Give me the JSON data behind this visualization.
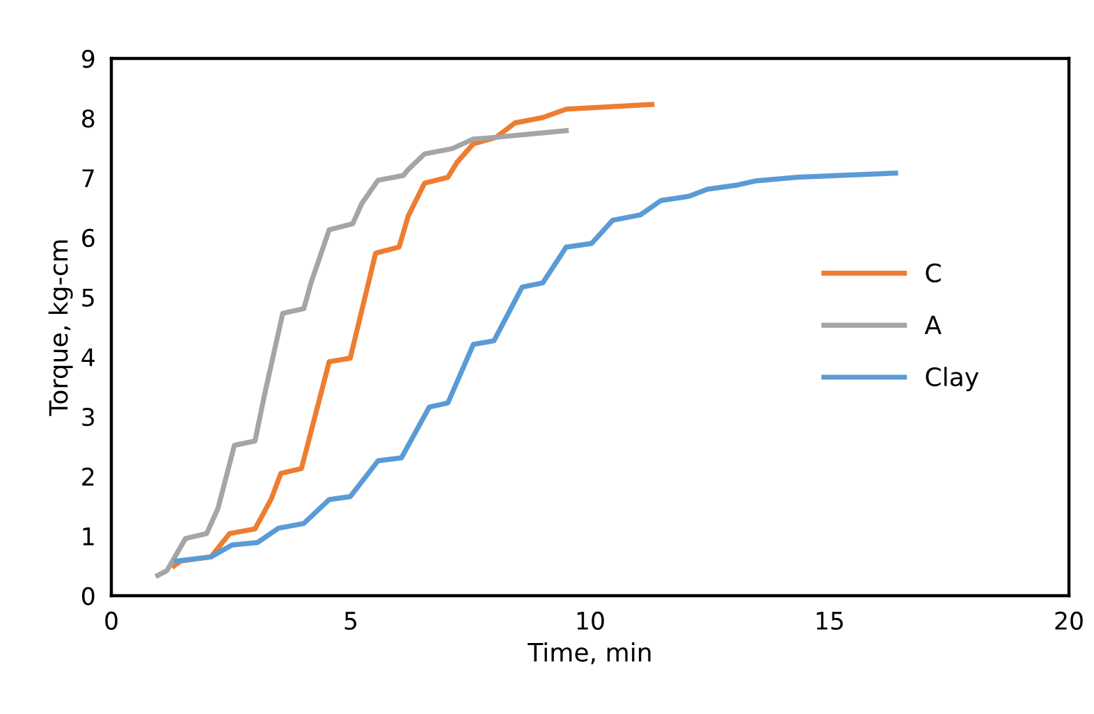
{
  "chart_data": {
    "type": "line",
    "xlabel": "Time, min",
    "ylabel": "Torque, kg-cm",
    "xlim": [
      0,
      20
    ],
    "xticks": [
      0,
      5,
      10,
      15,
      20
    ],
    "ylim": [
      0,
      9
    ],
    "yticks": [
      0,
      1,
      2,
      3,
      4,
      5,
      6,
      7,
      8,
      9
    ],
    "grid": false,
    "legend": "right",
    "marker": "none",
    "line_style": "solid",
    "series": [
      {
        "name": "C",
        "color": "#ed7d31",
        "x": [
          1.31,
          1.45,
          2.08,
          2.47,
          3.0,
          3.34,
          3.54,
          3.97,
          4.55,
          4.99,
          5.52,
          6.01,
          6.2,
          6.54,
          7.03,
          7.22,
          7.56,
          8.04,
          8.43,
          9.01,
          9.5,
          11.29
        ],
        "values": [
          0.5,
          0.58,
          0.65,
          1.04,
          1.12,
          1.62,
          2.05,
          2.13,
          3.92,
          3.98,
          5.74,
          5.84,
          6.36,
          6.91,
          7.01,
          7.26,
          7.57,
          7.68,
          7.92,
          8.01,
          8.15,
          8.23
        ]
      },
      {
        "name": "A",
        "color": "#a5a5a5",
        "x": [
          0.97,
          1.16,
          1.55,
          1.99,
          2.23,
          2.57,
          3.0,
          3.2,
          3.58,
          4.02,
          4.17,
          4.55,
          5.04,
          5.23,
          5.57,
          6.1,
          6.2,
          6.54,
          7.12,
          7.56,
          8.04,
          9.5
        ],
        "values": [
          0.34,
          0.42,
          0.96,
          1.04,
          1.47,
          2.52,
          2.59,
          3.37,
          4.73,
          4.81,
          5.24,
          6.13,
          6.23,
          6.57,
          6.96,
          7.04,
          7.14,
          7.4,
          7.49,
          7.65,
          7.68,
          7.79
        ]
      },
      {
        "name": "Clay",
        "color": "#5b9bd5",
        "x": [
          1.36,
          2.08,
          2.52,
          3.05,
          3.49,
          4.02,
          4.55,
          4.99,
          5.57,
          6.06,
          6.64,
          7.03,
          7.56,
          7.99,
          8.58,
          9.01,
          9.5,
          10.03,
          10.47,
          11.05,
          11.48,
          12.06,
          12.45,
          13.08,
          13.47,
          14.34,
          16.38
        ],
        "values": [
          0.58,
          0.65,
          0.85,
          0.89,
          1.13,
          1.21,
          1.61,
          1.66,
          2.26,
          2.31,
          3.16,
          3.23,
          4.21,
          4.27,
          5.17,
          5.24,
          5.84,
          5.9,
          6.29,
          6.38,
          6.62,
          6.69,
          6.81,
          6.88,
          6.95,
          7.01,
          7.08
        ]
      }
    ]
  }
}
